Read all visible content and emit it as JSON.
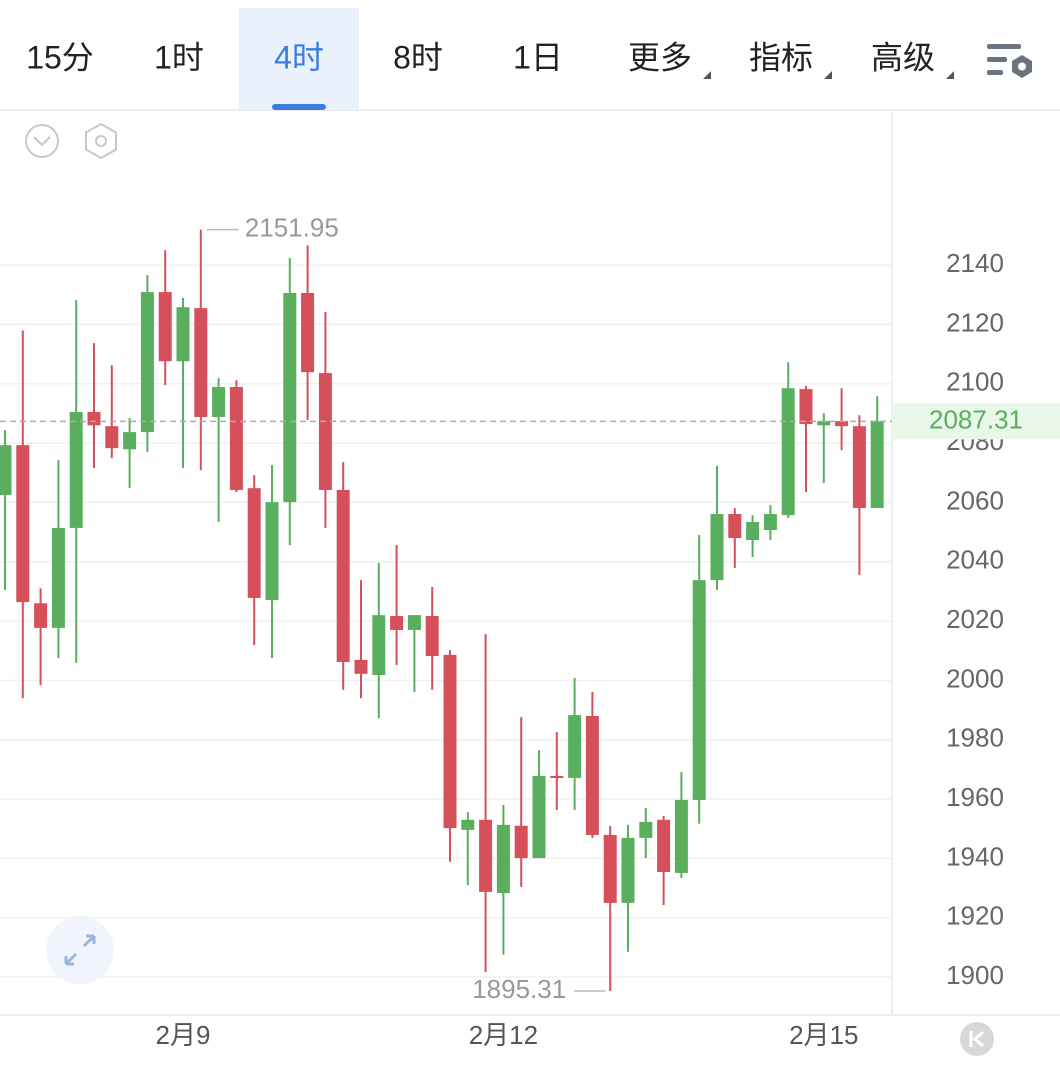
{
  "tabs": [
    "15分",
    "1时",
    "4时",
    "8时",
    "1日",
    "更多",
    "指标",
    "高级"
  ],
  "active_tab": 2,
  "chart_data": {
    "type": "candlestick",
    "categories": [
      null,
      null,
      null,
      null,
      null,
      null,
      null,
      null,
      null,
      null,
      "2月9",
      null,
      null,
      null,
      null,
      null,
      null,
      null,
      null,
      null,
      null,
      null,
      null,
      null,
      null,
      null,
      null,
      null,
      "2月12",
      null,
      null,
      null,
      null,
      null,
      null,
      null,
      null,
      null,
      null,
      null,
      null,
      null,
      null,
      null,
      null,
      null,
      "2月15",
      null,
      null,
      null
    ],
    "open": [
      2062.5,
      2079.3,
      2026,
      2017.7,
      2051.4,
      2090.5,
      2085.7,
      2077.9,
      2083.7,
      2130.9,
      2107.6,
      2125.5,
      2088.8,
      2098.9,
      2064.8,
      2027.1,
      2060.1,
      2130.6,
      2103.6,
      2064.2,
      2006.9,
      2001.8,
      2021.7,
      2017,
      2021.7,
      2008.6,
      1949.6,
      1953,
      1928.3,
      1951,
      1940.1,
      1967.8,
      1967.1,
      1988,
      1947.9,
      1925,
      1946.9,
      1953,
      1935.1,
      1959.7,
      2033.8,
      2056.1,
      2047.3,
      2050.7,
      2055.7,
      2098.2,
      2086,
      2087.4,
      2085.7,
      2058.1
    ],
    "high": [
      2084.4,
      2118,
      2031,
      2074.3,
      2128.2,
      2113.7,
      2106.3,
      2088.4,
      2136.6,
      2145,
      2128.9,
      2151.95,
      2101.9,
      2101.2,
      2069.2,
      2072.6,
      2142.4,
      2146.7,
      2124.2,
      2073.6,
      2033.8,
      2039.6,
      2045.6,
      2022,
      2031.5,
      2010.2,
      1955.6,
      2015.6,
      1958,
      1987.6,
      1976.5,
      1982.6,
      2000.8,
      1996.1,
      1950.9,
      1951.3,
      1957,
      1954.3,
      1969.1,
      2049,
      2072.3,
      2058.1,
      2055.7,
      2059.1,
      2107.3,
      2099.3,
      2090.1,
      2098.5,
      2089.4,
      2095.8
    ],
    "low": [
      2030.5,
      1994,
      1998.4,
      2007.5,
      2005.9,
      2071.6,
      2074.9,
      2064.8,
      2077,
      2099.6,
      2071.6,
      2070.9,
      2053.4,
      2063.5,
      2011.9,
      2007.5,
      2045.6,
      2087.8,
      2051.4,
      1996.8,
      1994,
      1987.3,
      2005.2,
      1996.1,
      1996.8,
      1938.8,
      1931,
      1901.7,
      1907.5,
      1930.4,
      1940.1,
      1956.3,
      1956.3,
      1946.9,
      1895.31,
      1908.5,
      1940.1,
      1924.3,
      1933.4,
      1951.7,
      2030.5,
      2037.9,
      2041.6,
      2047.3,
      2054.7,
      2063.5,
      2066.5,
      2077.6,
      2035.5,
      2058.1
    ],
    "close": [
      2079.3,
      2026.4,
      2017.7,
      2051.4,
      2090.5,
      2086,
      2078.3,
      2083.7,
      2130.9,
      2107.6,
      2125.8,
      2088.8,
      2098.9,
      2064.2,
      2027.8,
      2060.1,
      2130.6,
      2103.9,
      2064.2,
      2006.2,
      2002.2,
      2022,
      2017,
      2022,
      2008.2,
      1950.2,
      1953,
      1928.7,
      1951.3,
      1940.1,
      1967.8,
      1967.1,
      1988.3,
      1947.9,
      1925,
      1946.9,
      1952.3,
      1935.4,
      1959.7,
      2033.8,
      2056.1,
      2048,
      2053.4,
      2056.1,
      2098.5,
      2086.4,
      2087.4,
      2085.7,
      2058.1,
      2087.31
    ],
    "up_color": "#5aaf5e",
    "down_color": "#d5505a",
    "ylim": [
      1887.2,
      2190.6
    ],
    "yticks": [
      1900,
      1920,
      1940,
      1960,
      1980,
      2000,
      2020,
      2040,
      2060,
      2080,
      2100,
      2120,
      2140
    ],
    "grid": true,
    "max_label": 2151.95,
    "min_label": 1895.31,
    "last_price": 2087.31
  }
}
